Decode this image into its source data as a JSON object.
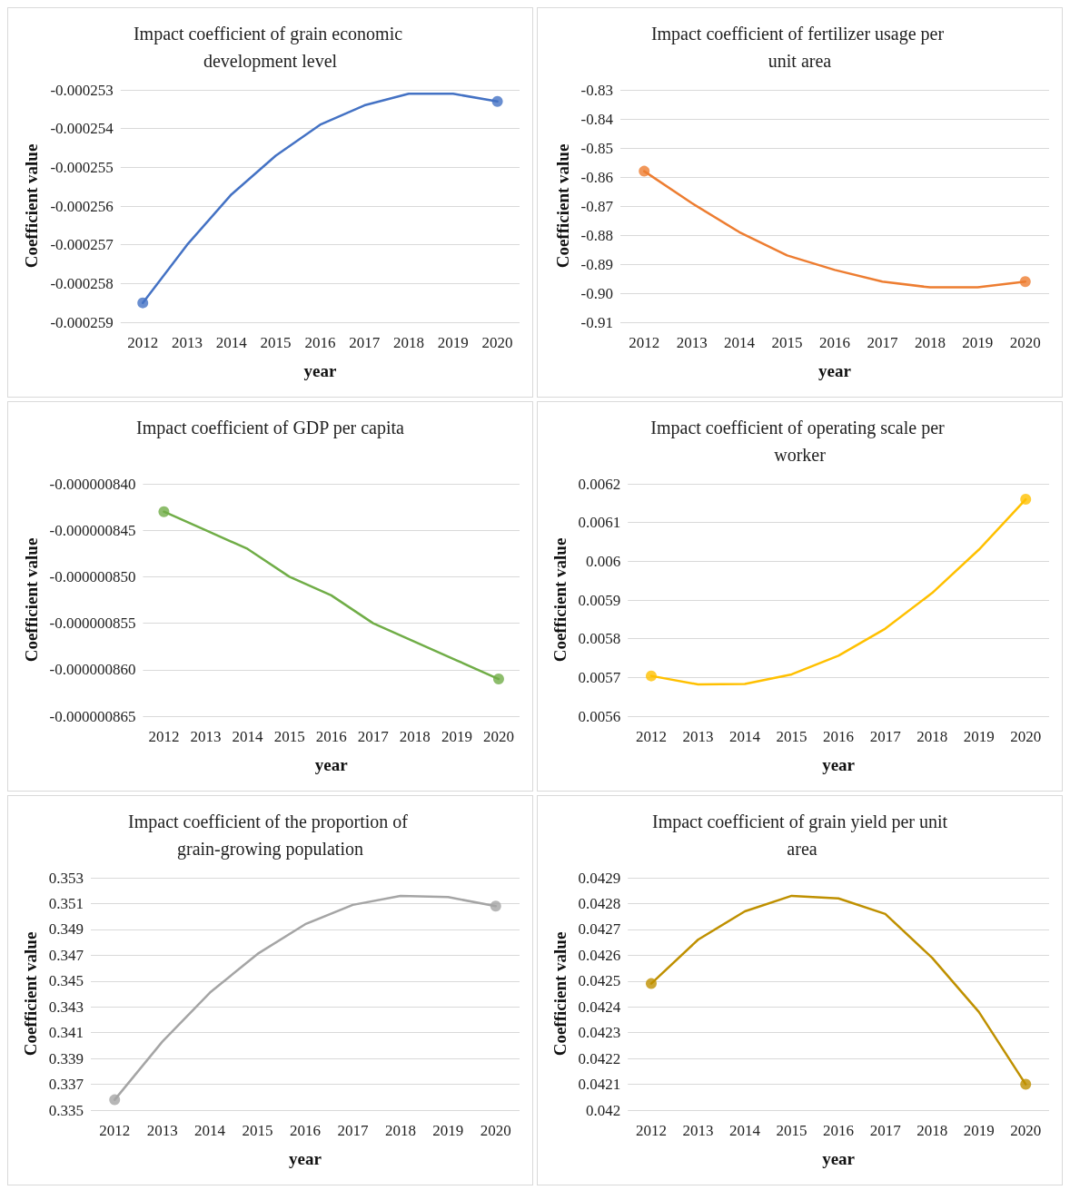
{
  "chart_data": [
    {
      "type": "line",
      "title": "Impact coefficient of grain economic development level",
      "xlabel": "year",
      "ylabel": "Coefficient value",
      "categories": [
        "2012",
        "2013",
        "2014",
        "2015",
        "2016",
        "2017",
        "2018",
        "2019",
        "2020"
      ],
      "series": [
        {
          "color": "#4472c4",
          "values": [
            -0.0002585,
            -0.000257,
            -0.0002557,
            -0.0002547,
            -0.0002539,
            -0.0002534,
            -0.0002531,
            -0.0002531,
            -0.0002533
          ]
        },
        {
          "type": "scatter",
          "color": "#4472c4",
          "values": [
            -0.0002585,
            null,
            null,
            null,
            null,
            null,
            null,
            null,
            -0.0002533
          ]
        }
      ],
      "ylim": [
        -0.000259,
        -0.000253
      ],
      "yticks": [
        -0.000259,
        -0.000258,
        -0.000257,
        -0.000256,
        -0.000255,
        -0.000254,
        -0.000253
      ],
      "grid": "y"
    },
    {
      "type": "line",
      "title": "Impact coefficient of fertilizer usage per unit area",
      "xlabel": "year",
      "ylabel": "Coefficient value",
      "categories": [
        "2012",
        "2013",
        "2014",
        "2015",
        "2016",
        "2017",
        "2018",
        "2019",
        "2020"
      ],
      "series": [
        {
          "color": "#ed7d31",
          "values": [
            -0.858,
            -0.869,
            -0.879,
            -0.887,
            -0.892,
            -0.896,
            -0.898,
            -0.898,
            -0.896
          ]
        },
        {
          "type": "scatter",
          "color": "#ed7d31",
          "values": [
            -0.858,
            null,
            null,
            null,
            null,
            null,
            null,
            null,
            -0.896
          ]
        }
      ],
      "ylim": [
        -0.91,
        -0.83
      ],
      "yticks": [
        -0.91,
        {
          "value": -0.9,
          "label": "-0.90"
        },
        -0.89,
        -0.88,
        -0.87,
        -0.86,
        -0.85,
        -0.84,
        -0.83
      ],
      "grid": "y"
    },
    {
      "type": "line",
      "title": "Impact coefficient of GDP per capita",
      "xlabel": "year",
      "ylabel": "Coefficient value",
      "categories": [
        "2012",
        "2013",
        "2014",
        "2015",
        "2016",
        "2017",
        "2018",
        "2019",
        "2020"
      ],
      "series": [
        {
          "color": "#70ad47",
          "values": [
            -8.43e-07,
            -8.45e-07,
            -8.47e-07,
            -8.5e-07,
            -8.52e-07,
            -8.55e-07,
            -8.57e-07,
            -8.59e-07,
            -8.61e-07
          ]
        },
        {
          "type": "scatter",
          "color": "#70ad47",
          "values": [
            -8.43e-07,
            null,
            null,
            null,
            null,
            null,
            null,
            null,
            -8.61e-07
          ]
        }
      ],
      "ylim": [
        -8.65e-07,
        -8.4e-07
      ],
      "yticks": [
        {
          "value": -8.65e-07,
          "label": "-0.000000865"
        },
        {
          "value": -8.6e-07,
          "label": "-0.000000860"
        },
        {
          "value": -8.55e-07,
          "label": "-0.000000855"
        },
        {
          "value": -8.5e-07,
          "label": "-0.000000850"
        },
        {
          "value": -8.45e-07,
          "label": "-0.000000845"
        },
        {
          "value": -8.4e-07,
          "label": "-0.000000840"
        }
      ],
      "grid": "y"
    },
    {
      "type": "line",
      "title": "Impact coefficient of operating scale per worker",
      "xlabel": "year",
      "ylabel": "Coefficient value",
      "categories": [
        "2012",
        "2013",
        "2014",
        "2015",
        "2016",
        "2017",
        "2018",
        "2019",
        "2020"
      ],
      "series": [
        {
          "color": "#ffc000",
          "values": [
            0.005704,
            0.005682,
            0.005683,
            0.005708,
            0.005756,
            0.005826,
            0.005918,
            0.00603,
            0.00616
          ]
        },
        {
          "type": "scatter",
          "color": "#ffc000",
          "values": [
            0.005704,
            null,
            null,
            null,
            null,
            null,
            null,
            null,
            0.00616
          ]
        }
      ],
      "ylim": [
        0.0056,
        0.0062
      ],
      "yticks": [
        0.0056,
        0.0057,
        0.0058,
        0.0059,
        0.006,
        0.0061,
        0.0062
      ],
      "grid": "y"
    },
    {
      "type": "line",
      "title": "Impact coefficient of the proportion of grain-growing population",
      "xlabel": "year",
      "ylabel": "Coefficient value",
      "categories": [
        "2012",
        "2013",
        "2014",
        "2015",
        "2016",
        "2017",
        "2018",
        "2019",
        "2020"
      ],
      "series": [
        {
          "color": "#a5a5a5",
          "values": [
            0.3358,
            0.3403,
            0.3441,
            0.3471,
            0.3494,
            0.3509,
            0.3516,
            0.3515,
            0.3508
          ]
        },
        {
          "type": "scatter",
          "color": "#a5a5a5",
          "values": [
            0.3358,
            null,
            null,
            null,
            null,
            null,
            null,
            null,
            0.3508
          ]
        }
      ],
      "ylim": [
        0.335,
        0.353
      ],
      "yticks": [
        0.335,
        0.337,
        0.339,
        0.341,
        0.343,
        0.345,
        0.347,
        0.349,
        0.351,
        0.353
      ],
      "grid": "y"
    },
    {
      "type": "line",
      "title": "Impact coefficient of grain yield per unit area",
      "xlabel": "year",
      "ylabel": "Coefficient value",
      "categories": [
        "2012",
        "2013",
        "2014",
        "2015",
        "2016",
        "2017",
        "2018",
        "2019",
        "2020"
      ],
      "series": [
        {
          "color": "#bf9000",
          "values": [
            0.04249,
            0.04266,
            0.04277,
            0.04283,
            0.04282,
            0.04276,
            0.04259,
            0.04238,
            0.0421
          ]
        },
        {
          "type": "scatter",
          "color": "#bf9000",
          "values": [
            0.04249,
            null,
            null,
            null,
            null,
            null,
            null,
            null,
            0.0421
          ]
        }
      ],
      "ylim": [
        0.042,
        0.0429
      ],
      "yticks": [
        0.042,
        0.0421,
        0.0422,
        0.0423,
        0.0424,
        0.0425,
        0.0426,
        0.0427,
        0.0428,
        0.0429
      ],
      "grid": "y"
    }
  ]
}
